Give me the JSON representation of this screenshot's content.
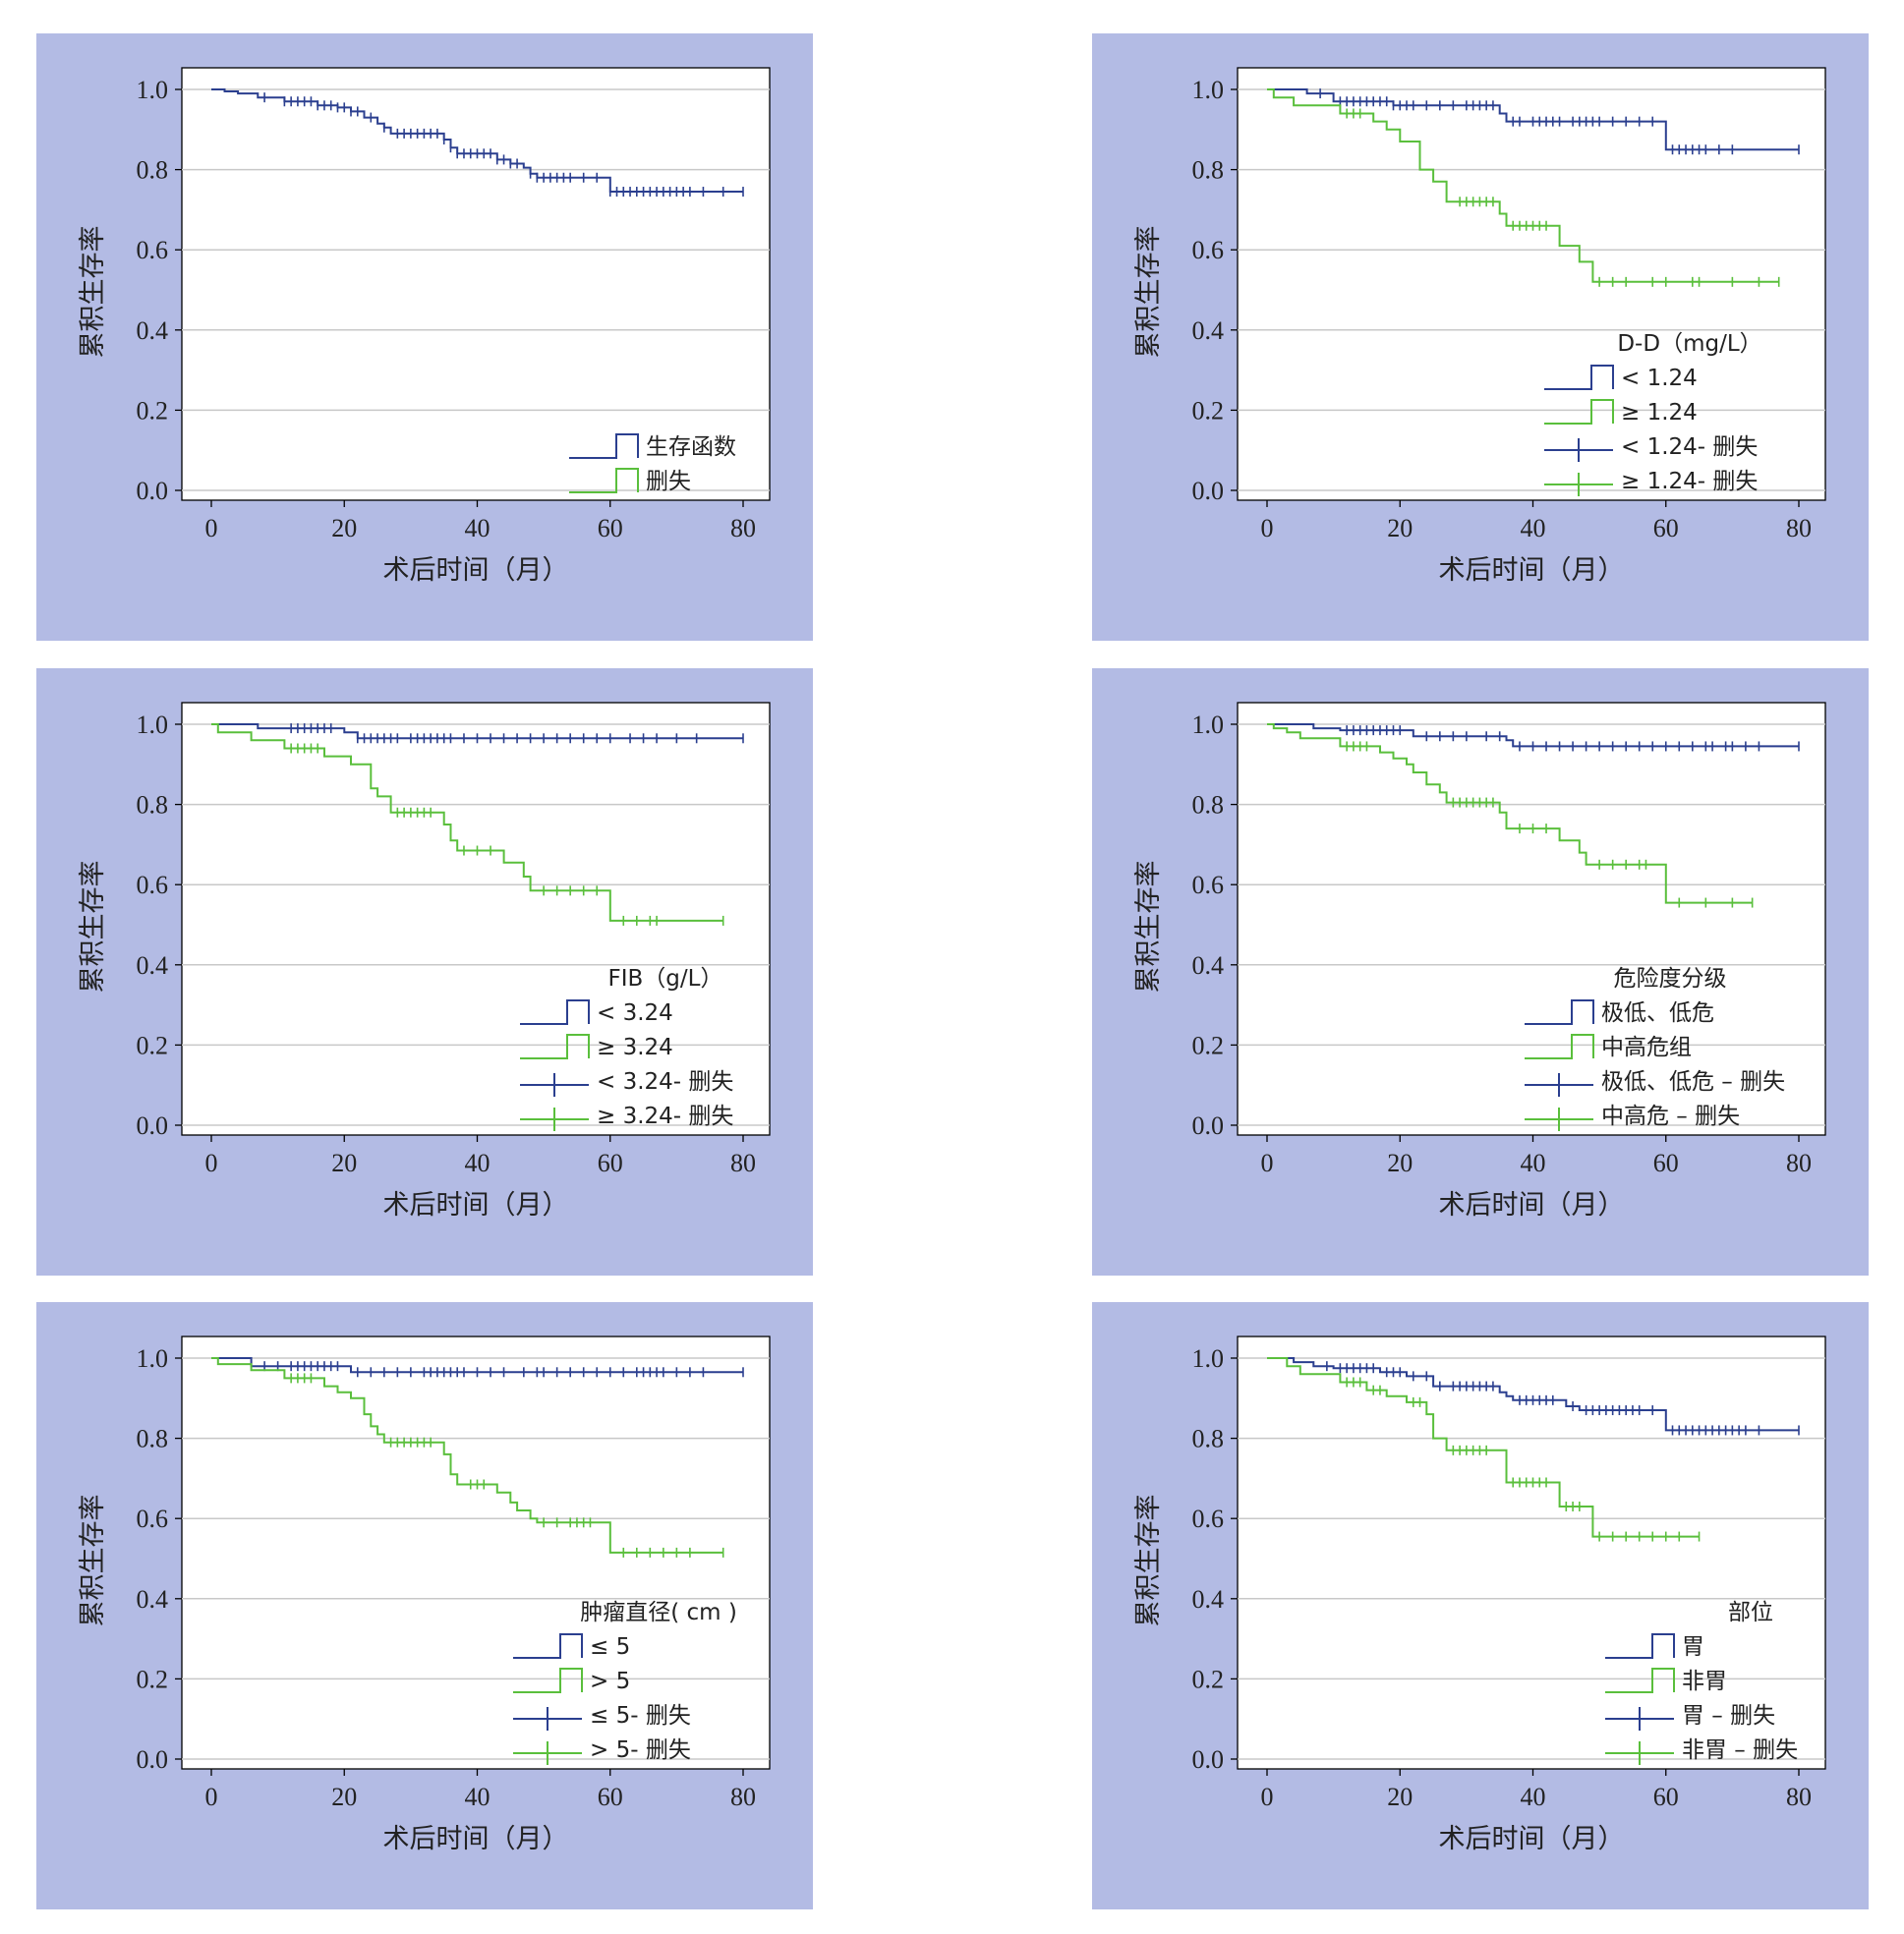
{
  "colors": {
    "panel_bg": "#b3bbe4",
    "blue": "#2b3f8f",
    "green": "#5abf3c",
    "grid": "#c8c8c8"
  },
  "chart_data": [
    {
      "type": "line",
      "xlabel": "术后时间（月）",
      "ylabel": "累积生存率",
      "xlim": [
        0,
        80
      ],
      "ylim": [
        0,
        1
      ],
      "xticks": [
        "0",
        "20",
        "40",
        "60",
        "80"
      ],
      "yticks": [
        "0.0",
        "0.2",
        "0.4",
        "0.6",
        "0.8",
        "1.0"
      ],
      "grid": true,
      "legend_position": "bottom-right",
      "legend_title": "",
      "legend_items": [
        "生存函数",
        "删失"
      ],
      "series": [
        {
          "color": "#2b3f8f",
          "x": [
            0,
            2,
            4,
            7,
            11,
            16,
            19,
            21,
            23,
            25,
            26,
            27,
            35,
            36,
            37,
            43,
            45,
            47,
            48,
            49,
            60,
            60
          ],
          "y": [
            1.0,
            0.995,
            0.99,
            0.98,
            0.97,
            0.96,
            0.955,
            0.945,
            0.93,
            0.915,
            0.905,
            0.89,
            0.875,
            0.855,
            0.84,
            0.825,
            0.815,
            0.805,
            0.79,
            0.78,
            0.75,
            0.745
          ],
          "censor_x": [
            8,
            11,
            12,
            13,
            14,
            15,
            16,
            17,
            18,
            19,
            20,
            21,
            22,
            24,
            26,
            28,
            29,
            30,
            31,
            32,
            33,
            34,
            35,
            36,
            37,
            38,
            39,
            40,
            41,
            42,
            43,
            44,
            45,
            46,
            48,
            49,
            50,
            51,
            52,
            53,
            54,
            56,
            58,
            60,
            61,
            62,
            63,
            64,
            65,
            66,
            67,
            68,
            69,
            70,
            71,
            72,
            74,
            77,
            80
          ]
        }
      ]
    },
    {
      "type": "line",
      "xlabel": "术后时间（月）",
      "ylabel": "累积生存率",
      "xlim": [
        0,
        80
      ],
      "ylim": [
        0,
        1
      ],
      "xticks": [
        "0",
        "20",
        "40",
        "60",
        "80"
      ],
      "yticks": [
        "0.0",
        "0.2",
        "0.4",
        "0.6",
        "0.8",
        "1.0"
      ],
      "grid": true,
      "legend_position": "bottom-right",
      "legend_title": "D-D（mg/L）",
      "legend_items": [
        "< 1.24",
        "≥ 1.24",
        "< 1.24- 删失",
        "≥ 1.24- 删失"
      ],
      "series": [
        {
          "name": "< 1.24",
          "color": "#2b3f8f",
          "x": [
            0,
            6,
            10,
            19,
            35,
            36,
            60
          ],
          "y": [
            1.0,
            0.99,
            0.97,
            0.96,
            0.94,
            0.92,
            0.85
          ],
          "censor_x": [
            8,
            11,
            12,
            13,
            14,
            15,
            16,
            17,
            18,
            19,
            20,
            21,
            22,
            24,
            26,
            28,
            30,
            31,
            32,
            33,
            34,
            37,
            38,
            40,
            41,
            42,
            43,
            44,
            46,
            47,
            48,
            49,
            50,
            52,
            54,
            56,
            58,
            61,
            62,
            63,
            64,
            65,
            66,
            68,
            70,
            80
          ]
        },
        {
          "name": "≥ 1.24",
          "color": "#5abf3c",
          "x": [
            0,
            1,
            4,
            11,
            16,
            18,
            20,
            23,
            25,
            27,
            35,
            36,
            44,
            47,
            49
          ],
          "y": [
            1.0,
            0.98,
            0.96,
            0.94,
            0.92,
            0.9,
            0.87,
            0.8,
            0.77,
            0.72,
            0.69,
            0.66,
            0.61,
            0.57,
            0.52
          ],
          "censor_x": [
            12,
            13,
            14,
            29,
            30,
            31,
            32,
            33,
            34,
            37,
            38,
            39,
            40,
            41,
            42,
            50,
            52,
            54,
            58,
            60,
            64,
            65,
            70,
            74,
            77
          ]
        }
      ]
    },
    {
      "type": "line",
      "xlabel": "术后时间（月）",
      "ylabel": "累积生存率",
      "xlim": [
        0,
        80
      ],
      "ylim": [
        0,
        1
      ],
      "xticks": [
        "0",
        "20",
        "40",
        "60",
        "80"
      ],
      "yticks": [
        "0.0",
        "0.2",
        "0.4",
        "0.6",
        "0.8",
        "1.0"
      ],
      "grid": true,
      "legend_position": "bottom-right",
      "legend_title": "FIB（g/L）",
      "legend_items": [
        "< 3.24",
        "≥ 3.24",
        "< 3.24- 删失",
        "≥ 3.24- 删失"
      ],
      "series": [
        {
          "name": "< 3.24",
          "color": "#2b3f8f",
          "x": [
            0,
            7,
            20,
            22
          ],
          "y": [
            1.0,
            0.99,
            0.98,
            0.965
          ],
          "censor_x": [
            12,
            13,
            14,
            15,
            16,
            17,
            18,
            22,
            23,
            24,
            25,
            26,
            27,
            28,
            30,
            31,
            32,
            33,
            34,
            35,
            36,
            38,
            40,
            42,
            44,
            46,
            48,
            50,
            52,
            54,
            56,
            58,
            60,
            63,
            65,
            67,
            70,
            73,
            80
          ]
        },
        {
          "name": "≥ 3.24",
          "color": "#5abf3c",
          "x": [
            0,
            1,
            6,
            11,
            17,
            21,
            24,
            25,
            27,
            35,
            36,
            37,
            44,
            47,
            48,
            60
          ],
          "y": [
            1.0,
            0.98,
            0.96,
            0.94,
            0.92,
            0.9,
            0.84,
            0.82,
            0.78,
            0.75,
            0.71,
            0.685,
            0.655,
            0.62,
            0.585,
            0.51
          ],
          "censor_x": [
            12,
            13,
            14,
            15,
            16,
            28,
            29,
            30,
            31,
            32,
            33,
            38,
            40,
            42,
            50,
            52,
            54,
            56,
            58,
            62,
            64,
            66,
            67,
            77
          ]
        }
      ]
    },
    {
      "type": "line",
      "xlabel": "术后时间（月）",
      "ylabel": "累积生存率",
      "xlim": [
        0,
        80
      ],
      "ylim": [
        0,
        1
      ],
      "xticks": [
        "0",
        "20",
        "40",
        "60",
        "80"
      ],
      "yticks": [
        "0.0",
        "0.2",
        "0.4",
        "0.6",
        "0.8",
        "1.0"
      ],
      "grid": true,
      "legend_position": "bottom-right",
      "legend_title": "危险度分级",
      "legend_items": [
        "极低、低危",
        "中高危组",
        "极低、低危 – 删失",
        "中高危 – 删失"
      ],
      "series": [
        {
          "name": "极低、低危",
          "color": "#2b3f8f",
          "x": [
            0,
            7,
            11,
            22,
            36,
            37
          ],
          "y": [
            1.0,
            0.99,
            0.985,
            0.97,
            0.96,
            0.945
          ],
          "censor_x": [
            12,
            13,
            14,
            15,
            16,
            17,
            18,
            19,
            20,
            24,
            26,
            28,
            30,
            33,
            35,
            38,
            40,
            42,
            44,
            46,
            48,
            50,
            52,
            54,
            56,
            58,
            60,
            62,
            64,
            66,
            67,
            69,
            70,
            72,
            74,
            80
          ]
        },
        {
          "name": "中高危组",
          "color": "#5abf3c",
          "x": [
            0,
            1,
            3,
            5,
            11,
            17,
            19,
            21,
            22,
            24,
            26,
            27,
            35,
            36,
            44,
            47,
            48,
            60
          ],
          "y": [
            1.0,
            0.99,
            0.98,
            0.965,
            0.945,
            0.93,
            0.915,
            0.9,
            0.88,
            0.85,
            0.83,
            0.805,
            0.78,
            0.74,
            0.71,
            0.68,
            0.65,
            0.555
          ],
          "censor_x": [
            12,
            13,
            14,
            15,
            28,
            29,
            30,
            31,
            32,
            33,
            34,
            38,
            40,
            42,
            50,
            52,
            54,
            56,
            57,
            62,
            66,
            70,
            73
          ]
        }
      ]
    },
    {
      "type": "line",
      "xlabel": "术后时间（月）",
      "ylabel": "累积生存率",
      "xlim": [
        0,
        80
      ],
      "ylim": [
        0,
        1
      ],
      "xticks": [
        "0",
        "20",
        "40",
        "60",
        "80"
      ],
      "yticks": [
        "0.0",
        "0.2",
        "0.4",
        "0.6",
        "0.8",
        "1.0"
      ],
      "grid": true,
      "legend_position": "bottom-right",
      "legend_title": "肿瘤直径( cm )",
      "legend_items": [
        "≤ 5",
        "> 5",
        "≤ 5- 删失",
        "> 5- 删失"
      ],
      "series": [
        {
          "name": "≤ 5",
          "color": "#2b3f8f",
          "x": [
            0,
            6,
            21
          ],
          "y": [
            1.0,
            0.98,
            0.965
          ],
          "censor_x": [
            8,
            10,
            12,
            13,
            14,
            15,
            16,
            17,
            18,
            19,
            22,
            24,
            26,
            28,
            30,
            32,
            33,
            34,
            35,
            36,
            37,
            38,
            40,
            42,
            44,
            47,
            49,
            50,
            52,
            54,
            56,
            58,
            60,
            62,
            64,
            65,
            66,
            67,
            68,
            70,
            72,
            74,
            80
          ]
        },
        {
          "name": "> 5",
          "color": "#5abf3c",
          "x": [
            0,
            1,
            6,
            11,
            17,
            19,
            21,
            23,
            24,
            25,
            26,
            35,
            36,
            37,
            43,
            45,
            46,
            48,
            49,
            60
          ],
          "y": [
            1.0,
            0.985,
            0.97,
            0.95,
            0.93,
            0.915,
            0.9,
            0.86,
            0.83,
            0.81,
            0.79,
            0.76,
            0.71,
            0.685,
            0.665,
            0.64,
            0.62,
            0.6,
            0.59,
            0.515
          ],
          "censor_x": [
            12,
            13,
            14,
            15,
            27,
            28,
            29,
            30,
            31,
            32,
            33,
            39,
            40,
            41,
            50,
            52,
            54,
            55,
            56,
            57,
            62,
            64,
            66,
            68,
            70,
            72,
            77
          ]
        }
      ]
    },
    {
      "type": "line",
      "xlabel": "术后时间（月）",
      "ylabel": "累积生存率",
      "xlim": [
        0,
        80
      ],
      "ylim": [
        0,
        1
      ],
      "xticks": [
        "0",
        "20",
        "40",
        "60",
        "80"
      ],
      "yticks": [
        "0.0",
        "0.2",
        "0.4",
        "0.6",
        "0.8",
        "1.0"
      ],
      "grid": true,
      "legend_position": "bottom-right",
      "legend_title": "部位",
      "legend_items": [
        "胃",
        "非胃",
        "胃 – 删失",
        "非胃 – 删失"
      ],
      "series": [
        {
          "name": "胃",
          "color": "#2b3f8f",
          "x": [
            0,
            4,
            7,
            10,
            17,
            21,
            25,
            35,
            36,
            37,
            45,
            47,
            60
          ],
          "y": [
            1.0,
            0.99,
            0.98,
            0.975,
            0.965,
            0.955,
            0.93,
            0.915,
            0.905,
            0.895,
            0.88,
            0.87,
            0.82
          ],
          "censor_x": [
            9,
            11,
            12,
            13,
            14,
            15,
            16,
            18,
            19,
            20,
            22,
            24,
            26,
            28,
            29,
            30,
            31,
            32,
            33,
            34,
            38,
            39,
            40,
            41,
            42,
            43,
            46,
            48,
            49,
            50,
            51,
            52,
            53,
            54,
            55,
            56,
            58,
            61,
            62,
            63,
            64,
            65,
            66,
            67,
            68,
            69,
            70,
            71,
            72,
            74,
            80
          ]
        },
        {
          "name": "非胃",
          "color": "#5abf3c",
          "x": [
            0,
            3,
            5,
            11,
            15,
            18,
            21,
            24,
            25,
            27,
            36,
            44,
            49
          ],
          "y": [
            1.0,
            0.98,
            0.96,
            0.94,
            0.92,
            0.905,
            0.89,
            0.86,
            0.8,
            0.77,
            0.69,
            0.63,
            0.555
          ],
          "censor_x": [
            12,
            13,
            14,
            16,
            17,
            22,
            23,
            28,
            29,
            30,
            31,
            32,
            33,
            37,
            38,
            39,
            40,
            41,
            42,
            45,
            46,
            47,
            50,
            52,
            54,
            56,
            58,
            60,
            62,
            65
          ]
        }
      ]
    }
  ]
}
